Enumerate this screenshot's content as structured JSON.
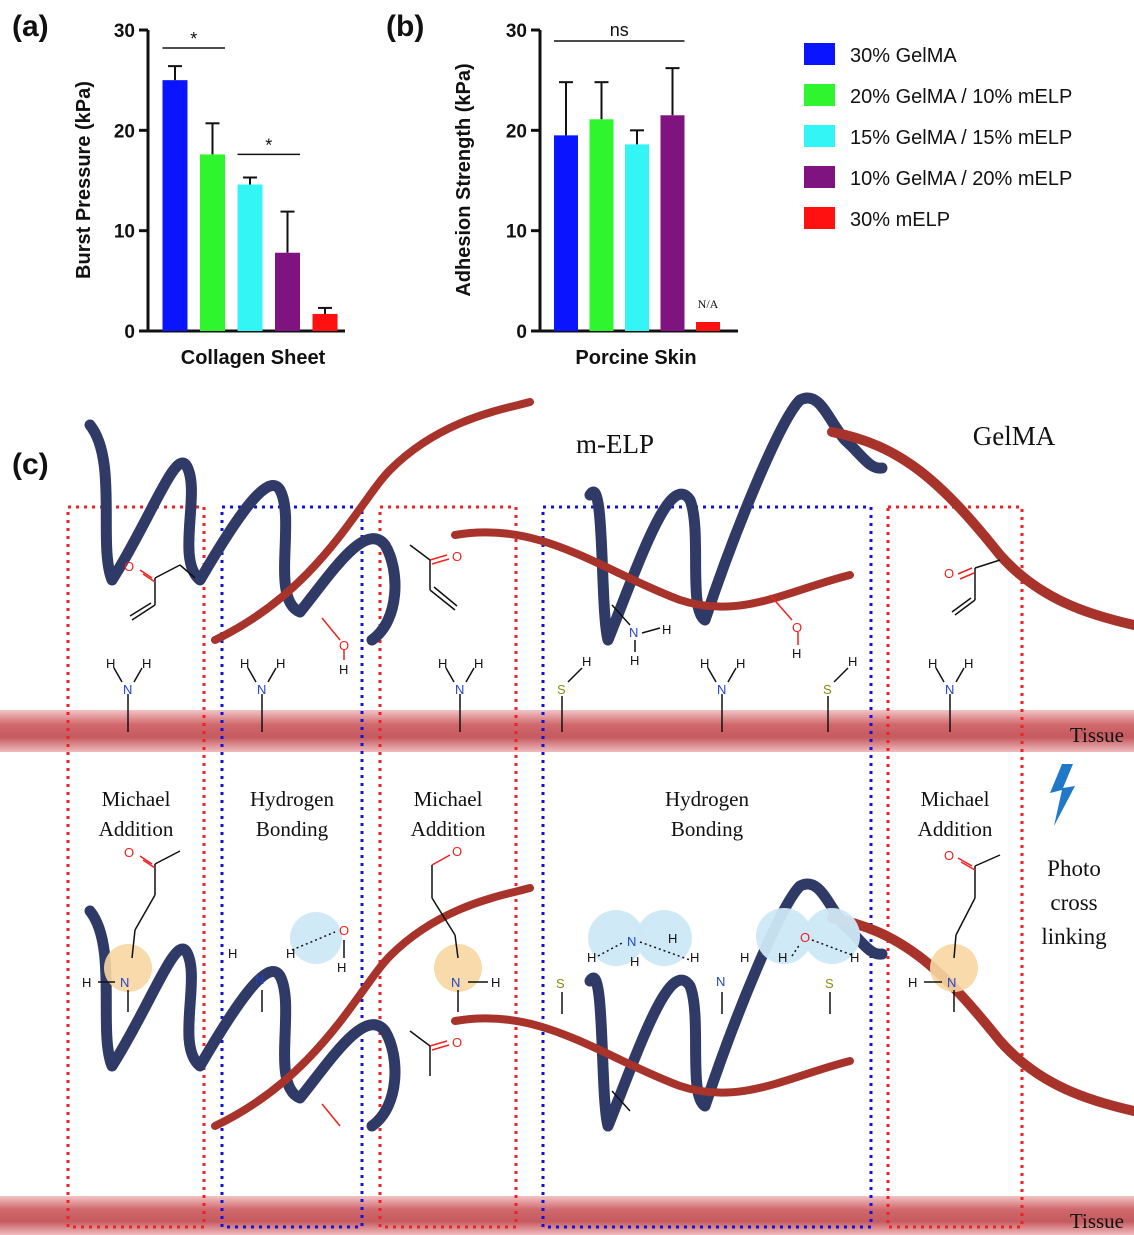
{
  "colors": {
    "gelma30": "#0a14ff",
    "g20m10": "#2ef52e",
    "g15m15": "#33f5f5",
    "g10m20": "#7f137f",
    "melp30": "#ff1111",
    "ribbon_elp": "#2f3a66",
    "ribbon_gelma": "#a8332b",
    "tissue": "#d7777a",
    "michael_box": "#ee2222",
    "hbond_box": "#1111dd"
  },
  "legend": [
    {
      "label": "30% GelMA",
      "color_key": "gelma30"
    },
    {
      "label": "20% GelMA / 10% mELP",
      "color_key": "g20m10"
    },
    {
      "label": "15% GelMA / 15% mELP",
      "color_key": "g15m15"
    },
    {
      "label": "10% GelMA / 20% mELP",
      "color_key": "g10m20"
    },
    {
      "label": "30% mELP",
      "color_key": "melp30"
    }
  ],
  "chart_data": [
    {
      "panel": "(a)",
      "type": "bar",
      "ylabel": "Burst Pressure (kPa)",
      "xlabel": "Collagen Sheet",
      "ylim": [
        0,
        30
      ],
      "yticks": [
        0,
        10,
        20,
        30
      ],
      "categories": [
        "30% GelMA",
        "20% GelMA / 10% mELP",
        "15% GelMA / 15% mELP",
        "10% GelMA / 20% mELP",
        "30% mELP"
      ],
      "values": [
        25.0,
        17.6,
        14.6,
        7.8,
        1.7
      ],
      "errors": [
        1.4,
        3.1,
        0.7,
        4.1,
        0.6
      ],
      "significance": [
        {
          "from": 0,
          "to": 1,
          "label": "*",
          "at": 28.2
        },
        {
          "from": 2,
          "to": 3,
          "label": "*",
          "at": 17.6
        }
      ],
      "annotations": []
    },
    {
      "panel": "(b)",
      "type": "bar",
      "ylabel": "Adhesion Strength (kPa)",
      "xlabel": "Porcine Skin",
      "ylim": [
        0,
        30
      ],
      "yticks": [
        0,
        10,
        20,
        30
      ],
      "categories": [
        "30% GelMA",
        "20% GelMA / 10% mELP",
        "15% GelMA / 15% mELP",
        "10% GelMA / 20% mELP",
        "30% mELP"
      ],
      "values": [
        19.5,
        21.1,
        18.6,
        21.5,
        0.9
      ],
      "errors": [
        5.3,
        3.7,
        1.4,
        4.7,
        0
      ],
      "significance": [
        {
          "from": 0,
          "to": 3,
          "label": "ns",
          "at": 28.9
        }
      ],
      "annotations": [
        {
          "index": 4,
          "label": "N/A"
        }
      ]
    }
  ],
  "diagram": {
    "panel": "(c)",
    "mELP_label": "m-ELP",
    "gelma_label": "GelMA",
    "tissue_label": "Tissue",
    "regions": [
      {
        "line1": "Michael",
        "line2": "Addition"
      },
      {
        "line1": "Hydrogen",
        "line2": "Bonding"
      },
      {
        "line1": "Michael",
        "line2": "Addition"
      },
      {
        "line1": "Hydrogen",
        "line2": "Bonding"
      },
      {
        "line1": "Michael",
        "line2": "Addition"
      }
    ],
    "photo_label": [
      "Photo",
      "cross",
      "linking"
    ],
    "atoms": {
      "N": "N",
      "O": "O",
      "S": "S",
      "H": "H"
    }
  }
}
